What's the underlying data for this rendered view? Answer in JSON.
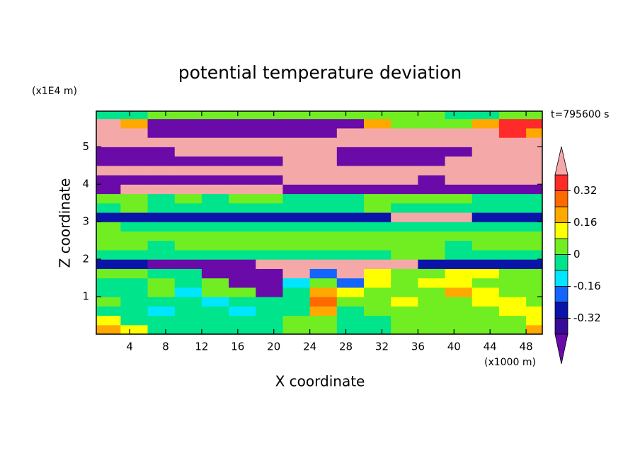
{
  "chart_data": {
    "type": "contour",
    "title": "potential temperature deviation",
    "x_label": "X coordinate",
    "x_unit": "(x1000 m)",
    "y_label": "Z coordinate",
    "y_unit": "(x1E4 m)",
    "time_label": "t=795600 s",
    "xlim": [
      0.3,
      49.8
    ],
    "xticks": [
      4,
      8,
      12,
      16,
      20,
      24,
      28,
      32,
      36,
      40,
      44,
      48
    ],
    "ylim": [
      0,
      5.95
    ],
    "yticks": [
      1,
      2,
      3,
      4,
      5
    ],
    "x": [
      1.5,
      4.5,
      7.5,
      10.5,
      13.5,
      16.5,
      19.5,
      22.5,
      25.5,
      28.5,
      31.5,
      34.5,
      37.5,
      40.5,
      43.5,
      46.5,
      49.5
    ],
    "y": [
      0.125,
      0.375,
      0.625,
      0.875,
      1.125,
      1.375,
      1.625,
      1.875,
      2.125,
      2.375,
      2.625,
      2.875,
      3.125,
      3.375,
      3.625,
      3.875,
      4.125,
      4.375,
      4.625,
      4.875,
      5.125,
      5.375,
      5.625,
      5.875
    ],
    "z": [
      [
        0.2,
        0.12,
        -0.04,
        -0.04,
        -0.04,
        -0.04,
        -0.04,
        0.04,
        0.04,
        -0.04,
        -0.04,
        0.04,
        0.04,
        0.04,
        0.04,
        0.04,
        0.2
      ],
      [
        0.12,
        -0.04,
        -0.04,
        -0.04,
        -0.04,
        -0.04,
        -0.04,
        0.04,
        0.04,
        -0.04,
        -0.04,
        0.04,
        0.04,
        0.04,
        0.04,
        0.04,
        0.12
      ],
      [
        -0.04,
        -0.04,
        -0.12,
        -0.04,
        -0.04,
        -0.12,
        -0.04,
        -0.04,
        0.2,
        -0.04,
        0.04,
        0.04,
        0.04,
        0.04,
        0.04,
        0.12,
        0.12
      ],
      [
        0.04,
        -0.04,
        -0.04,
        -0.04,
        -0.12,
        -0.04,
        -0.04,
        -0.04,
        0.28,
        0.04,
        0.04,
        0.12,
        0.04,
        0.04,
        0.12,
        0.12,
        0.04
      ],
      [
        -0.04,
        -0.04,
        0.04,
        -0.12,
        0.04,
        0.04,
        -0.45,
        -0.04,
        0.2,
        0.12,
        0.04,
        0.04,
        0.04,
        0.2,
        0.12,
        0.04,
        0.04
      ],
      [
        -0.04,
        -0.04,
        0.04,
        -0.04,
        0.04,
        -0.45,
        -0.45,
        -0.12,
        0.04,
        -0.2,
        0.12,
        0.04,
        0.12,
        0.12,
        0.04,
        0.04,
        0.04
      ],
      [
        0.04,
        0.04,
        -0.04,
        -0.04,
        -0.45,
        -0.45,
        -0.45,
        0.45,
        -0.2,
        0.45,
        0.12,
        0.04,
        0.04,
        0.12,
        0.12,
        0.04,
        0.04
      ],
      [
        -0.28,
        -0.28,
        -0.45,
        -0.45,
        -0.45,
        -0.45,
        0.45,
        0.45,
        0.45,
        0.45,
        0.45,
        0.45,
        -0.28,
        -0.28,
        -0.28,
        -0.28,
        -0.28
      ],
      [
        -0.04,
        -0.04,
        -0.04,
        -0.04,
        -0.04,
        -0.04,
        -0.04,
        -0.04,
        -0.04,
        -0.04,
        -0.04,
        0.04,
        0.04,
        -0.04,
        -0.04,
        -0.04,
        -0.04
      ],
      [
        0.04,
        0.04,
        -0.04,
        0.04,
        0.04,
        0.04,
        0.04,
        0.04,
        0.04,
        0.04,
        0.04,
        0.04,
        0.04,
        -0.04,
        0.04,
        0.04,
        0.04
      ],
      [
        0.04,
        0.04,
        0.04,
        0.04,
        0.04,
        0.04,
        0.04,
        0.04,
        0.04,
        0.04,
        0.04,
        0.04,
        0.04,
        0.04,
        0.04,
        0.04,
        0.04
      ],
      [
        0.04,
        -0.04,
        -0.04,
        -0.04,
        -0.04,
        -0.04,
        -0.04,
        -0.04,
        -0.04,
        -0.04,
        -0.04,
        -0.04,
        -0.04,
        -0.04,
        -0.04,
        -0.04,
        -0.04
      ],
      [
        -0.28,
        -0.28,
        -0.28,
        -0.28,
        -0.28,
        -0.28,
        -0.28,
        -0.28,
        -0.28,
        -0.28,
        -0.28,
        0.45,
        0.45,
        0.45,
        -0.28,
        -0.28,
        -0.28
      ],
      [
        -0.04,
        0.04,
        -0.04,
        -0.04,
        -0.04,
        -0.04,
        -0.04,
        -0.04,
        -0.04,
        -0.04,
        0.04,
        -0.04,
        -0.04,
        -0.04,
        -0.04,
        -0.04,
        -0.04
      ],
      [
        0.04,
        0.04,
        -0.04,
        0.04,
        -0.04,
        0.04,
        0.04,
        -0.04,
        -0.04,
        -0.04,
        0.04,
        0.04,
        0.04,
        0.04,
        -0.04,
        -0.04,
        -0.04
      ],
      [
        -0.45,
        0.45,
        0.45,
        0.45,
        0.45,
        0.45,
        0.45,
        -0.45,
        -0.45,
        -0.45,
        -0.45,
        -0.45,
        -0.45,
        -0.45,
        -0.45,
        -0.45,
        -0.45
      ],
      [
        -0.45,
        -0.45,
        -0.45,
        -0.45,
        -0.45,
        -0.45,
        -0.45,
        0.45,
        0.45,
        0.45,
        0.45,
        0.45,
        -0.45,
        0.45,
        0.45,
        0.45,
        0.45
      ],
      [
        0.45,
        0.45,
        0.45,
        0.45,
        0.45,
        0.45,
        0.45,
        0.45,
        0.45,
        0.45,
        0.45,
        0.45,
        0.45,
        0.45,
        0.45,
        0.45,
        0.45
      ],
      [
        -0.45,
        -0.45,
        -0.45,
        -0.45,
        -0.45,
        -0.45,
        -0.45,
        0.45,
        0.45,
        -0.45,
        -0.45,
        -0.45,
        -0.45,
        0.45,
        0.45,
        0.45,
        0.45
      ],
      [
        -0.45,
        -0.45,
        -0.45,
        0.45,
        0.45,
        0.45,
        0.45,
        0.45,
        0.45,
        -0.45,
        -0.45,
        -0.45,
        -0.45,
        -0.45,
        0.45,
        0.45,
        0.45
      ],
      [
        0.45,
        0.45,
        0.45,
        0.45,
        0.45,
        0.45,
        0.45,
        0.45,
        0.45,
        0.45,
        0.45,
        0.45,
        0.45,
        0.45,
        0.45,
        0.45,
        0.45
      ],
      [
        0.45,
        0.45,
        -0.45,
        -0.45,
        -0.45,
        -0.45,
        -0.45,
        -0.45,
        -0.45,
        0.45,
        0.45,
        0.45,
        0.45,
        0.45,
        0.45,
        0.36,
        0.2
      ],
      [
        0.45,
        0.2,
        -0.45,
        -0.45,
        -0.45,
        -0.45,
        -0.45,
        -0.45,
        -0.45,
        -0.45,
        0.2,
        0.04,
        0.04,
        0.04,
        0.2,
        0.36,
        0.36
      ],
      [
        -0.04,
        -0.04,
        0.04,
        0.04,
        0.04,
        0.04,
        0.04,
        0.04,
        0.04,
        0.04,
        0.04,
        0.04,
        0.04,
        -0.04,
        -0.04,
        0.04,
        0.04
      ]
    ],
    "levels": [
      -0.4,
      -0.32,
      -0.24,
      -0.16,
      -0.08,
      0,
      0.08,
      0.16,
      0.24,
      0.32,
      0.4
    ],
    "colors": [
      "#6a0aa8",
      "#3a0a98",
      "#0a14a8",
      "#1464ff",
      "#00e6ff",
      "#00e48c",
      "#70ee22",
      "#ffff00",
      "#ffa800",
      "#ff6a00",
      "#ff2a2a",
      "#f5a8a8"
    ],
    "colorbar_ticks": [
      -0.32,
      -0.16,
      0,
      0.16,
      0.32
    ]
  }
}
